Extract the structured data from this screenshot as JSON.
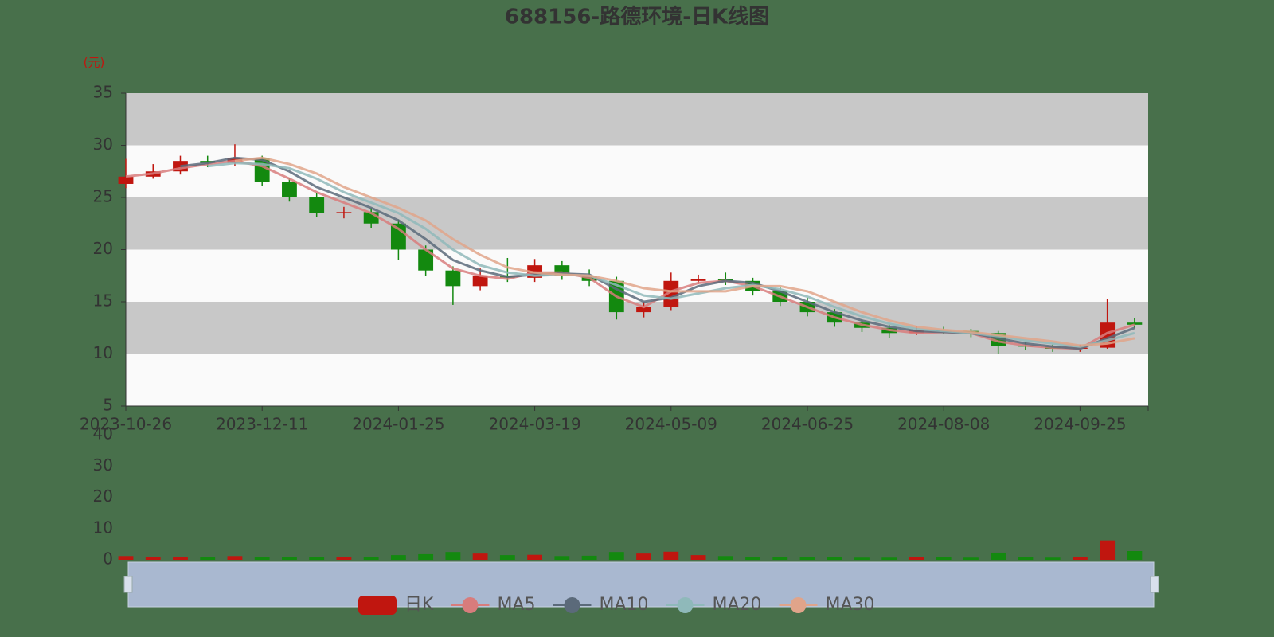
{
  "chart_data": {
    "type": "candlestick",
    "title": "688156-路德环境-日K线图",
    "ylabel": "(元)",
    "x": [
      "2023-10-26",
      null,
      null,
      null,
      null,
      "2023-12-11",
      null,
      null,
      null,
      null,
      "2024-01-25",
      null,
      null,
      null,
      null,
      "2024-03-19",
      null,
      null,
      null,
      null,
      "2024-05-09",
      null,
      null,
      null,
      null,
      "2024-06-25",
      null,
      null,
      null,
      null,
      "2024-08-08",
      null,
      null,
      null,
      null,
      "2024-09-25",
      null,
      null
    ],
    "ylim": [
      5,
      35
    ],
    "yticks": [
      5,
      10,
      15,
      20,
      25,
      30,
      35
    ],
    "split_area": [
      "#fafafa",
      "#c8c8c8"
    ],
    "up_color": "#c0160f",
    "down_color": "#13890f",
    "series": [
      {
        "name": "日K",
        "color": "#c0160f",
        "values": [
          [
            26.3,
            27,
            25.9,
            28.7
          ],
          [
            27,
            27.5,
            26.8,
            28.2
          ],
          [
            27.5,
            28.5,
            27.2,
            29
          ],
          [
            28.5,
            28.3,
            27.9,
            29
          ],
          [
            28.3,
            28.8,
            28,
            30.1
          ],
          [
            28.8,
            26.5,
            26.1,
            29
          ],
          [
            26.5,
            25,
            24.6,
            26.9
          ],
          [
            25,
            23.5,
            23.1,
            25.4
          ],
          [
            23.5,
            23.6,
            23,
            24.1
          ],
          [
            23.6,
            22.5,
            22.1,
            24
          ],
          [
            22.5,
            20,
            19,
            22.9
          ],
          [
            20,
            18,
            17.5,
            20.4
          ],
          [
            18,
            16.5,
            14.7,
            18.4
          ],
          [
            16.5,
            17.5,
            16.1,
            18.2
          ],
          [
            17.5,
            17.3,
            16.9,
            19.2
          ],
          [
            17.3,
            18.5,
            16.9,
            19.1
          ],
          [
            18.5,
            17.5,
            17.1,
            18.9
          ],
          [
            17.5,
            17,
            16.5,
            18.1
          ],
          [
            17,
            14,
            13.3,
            17.4
          ],
          [
            14,
            14.5,
            13.5,
            15
          ],
          [
            14.5,
            17,
            14.2,
            17.8
          ],
          [
            17,
            17.2,
            16.7,
            17.6
          ],
          [
            17.2,
            17,
            16.6,
            17.8
          ],
          [
            17,
            16,
            15.6,
            17.3
          ],
          [
            16,
            15,
            14.6,
            16.4
          ],
          [
            15,
            14,
            13.6,
            15.4
          ],
          [
            14,
            13,
            12.6,
            14.3
          ],
          [
            13,
            12.5,
            12.1,
            13.3
          ],
          [
            12.5,
            12,
            11.5,
            12.8
          ],
          [
            12,
            12.3,
            11.8,
            12.7
          ],
          [
            12.3,
            12.2,
            11.9,
            12.6
          ],
          [
            12.2,
            12,
            11.6,
            12.4
          ],
          [
            12,
            10.8,
            10,
            12.2
          ],
          [
            10.8,
            10.7,
            10.4,
            11.1
          ],
          [
            10.7,
            10.5,
            10.2,
            10.9
          ],
          [
            10.5,
            10.6,
            10.2,
            10.9
          ],
          [
            10.6,
            13,
            10.5,
            15.3
          ],
          [
            13,
            12.8,
            12.5,
            13.4
          ]
        ]
      },
      {
        "name": "MA5",
        "color": "#d87c7c",
        "values": [
          27,
          27.3,
          27.8,
          28.2,
          28.5,
          28,
          26.8,
          25.5,
          24.5,
          23.5,
          22,
          20,
          18.2,
          17.5,
          17.2,
          17.8,
          17.8,
          17.3,
          15.5,
          14.5,
          16,
          16.8,
          17,
          16.5,
          15.5,
          14.5,
          13.5,
          12.8,
          12.3,
          12,
          12.1,
          12,
          11.2,
          10.8,
          10.6,
          10.5,
          12,
          12.8
        ]
      },
      {
        "name": "MA10",
        "color": "#5b6a7a",
        "values": [
          null,
          null,
          28,
          28.3,
          28.8,
          28.6,
          27.5,
          26,
          25,
          24,
          22.8,
          21,
          19,
          18,
          17.4,
          17.6,
          17.7,
          17.6,
          16.2,
          15,
          15.4,
          16.5,
          17,
          16.8,
          16,
          15,
          14,
          13.2,
          12.6,
          12.2,
          12.1,
          12,
          11.5,
          11,
          10.7,
          10.5,
          11.5,
          12.5
        ]
      },
      {
        "name": "MA20",
        "color": "#8fb9ba",
        "values": [
          null,
          null,
          null,
          28,
          28.3,
          28.2,
          27.8,
          26.8,
          25.5,
          24.5,
          23.5,
          22,
          20,
          18.5,
          17.8,
          17.5,
          17.6,
          17.5,
          16.6,
          15.6,
          15.3,
          15.8,
          16.3,
          16.6,
          16.2,
          15.5,
          14.5,
          13.6,
          12.9,
          12.4,
          12.2,
          12,
          11.7,
          11.3,
          11,
          10.7,
          11.3,
          12
        ]
      },
      {
        "name": "MA30",
        "color": "#e0a48a",
        "values": [
          null,
          null,
          null,
          null,
          28.5,
          28.8,
          28.2,
          27.3,
          26,
          25,
          24,
          22.8,
          21,
          19.5,
          18.3,
          17.8,
          17.6,
          17.5,
          17,
          16.3,
          16,
          16,
          16,
          16.5,
          16.5,
          16,
          15,
          14,
          13.2,
          12.6,
          12.3,
          12.1,
          11.8,
          11.5,
          11.2,
          10.8,
          11,
          11.5
        ]
      }
    ],
    "volume": {
      "ylim": [
        0,
        40
      ],
      "yticks": [
        0,
        10,
        20,
        30,
        40
      ],
      "values": [
        1.2,
        1,
        0.8,
        1,
        1.2,
        0.8,
        0.9,
        0.9,
        0.8,
        1,
        1.5,
        1.8,
        2.5,
        2,
        1.5,
        1.6,
        1.2,
        1.3,
        2.5,
        2,
        2.6,
        1.5,
        1.2,
        1,
        1,
        0.9,
        0.8,
        0.7,
        0.7,
        0.8,
        0.9,
        0.7,
        2.3,
        1,
        0.7,
        0.8,
        6.2,
        2.8
      ]
    }
  }
}
